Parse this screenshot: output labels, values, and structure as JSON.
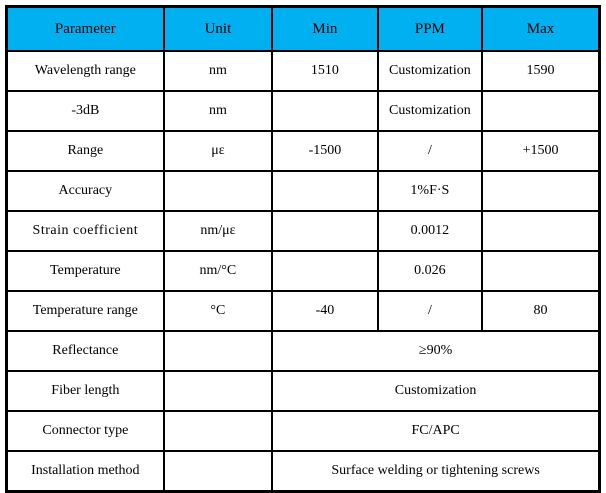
{
  "table": {
    "colors": {
      "header_bg": "#00b0f0",
      "border": "#000000",
      "text": "#000000",
      "background": "#ffffff"
    },
    "header": {
      "parameter": "Parameter",
      "unit": "Unit",
      "min": "Min",
      "ppm": "PPM",
      "max": "Max"
    },
    "rows": [
      {
        "parameter": "Wavelength range",
        "unit": "nm",
        "min": "1510",
        "ppm": "Customization",
        "max": "1590"
      },
      {
        "parameter": "-3dB",
        "unit": "nm",
        "min": "",
        "ppm": "Customization",
        "max": ""
      },
      {
        "parameter": "Range",
        "unit": "με",
        "min": "-1500",
        "ppm": "/",
        "max": "+1500"
      },
      {
        "parameter": "Accuracy",
        "unit": "",
        "min": "",
        "ppm": "1%F·S",
        "max": ""
      },
      {
        "parameter": "Strain coefficient",
        "unit": "nm/με",
        "min": "",
        "ppm": "0.0012",
        "max": ""
      },
      {
        "parameter": "Temperature",
        "unit": "nm/°C",
        "min": "",
        "ppm": "0.026",
        "max": ""
      },
      {
        "parameter": "Temperature range",
        "unit": "°C",
        "min": "-40",
        "ppm": "/",
        "max": "80"
      },
      {
        "parameter": "Reflectance",
        "unit": "",
        "value": "≥90%"
      },
      {
        "parameter": "Fiber length",
        "unit": "",
        "value": "Customization"
      },
      {
        "parameter": "Connector type",
        "unit": "",
        "value": "FC/APC"
      },
      {
        "parameter": "Installation method",
        "unit": "",
        "value": "Surface welding or tightening screws"
      }
    ]
  }
}
